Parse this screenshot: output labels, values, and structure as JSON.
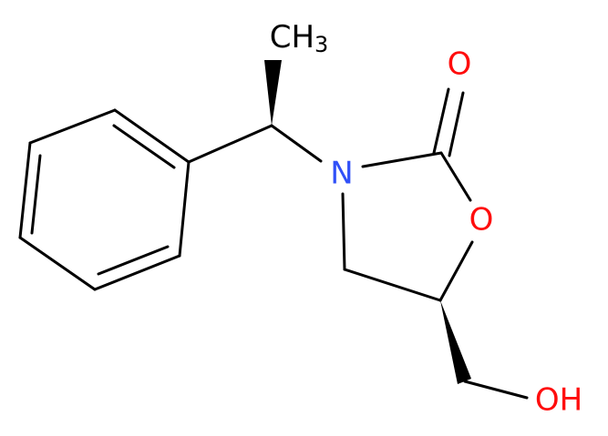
{
  "atoms": {
    "methyl": {
      "text": "CH",
      "sub": "3"
    },
    "carbonyl_oxygen": "O",
    "nitrogen": "N",
    "ring_oxygen": "O",
    "hydroxyl": "OH"
  }
}
